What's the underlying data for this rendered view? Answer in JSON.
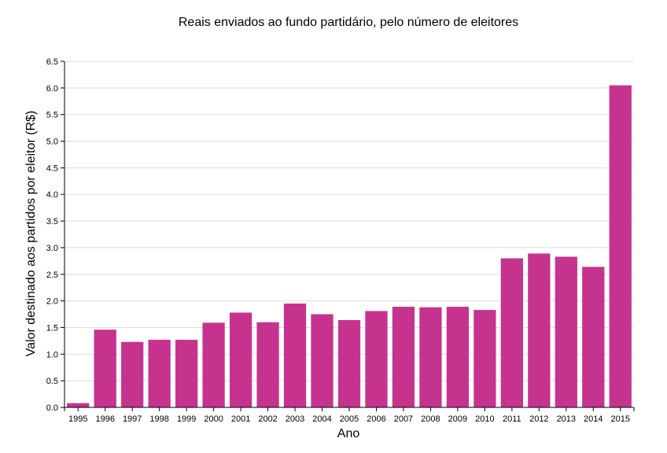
{
  "chart_data": {
    "type": "bar",
    "title": "Reais enviados ao fundo partidário, pelo número de eleitores",
    "xlabel": "Ano",
    "ylabel": "Valor destinado aos partidos por eleitor (R$)",
    "categories": [
      "1995",
      "1996",
      "1997",
      "1998",
      "1999",
      "2000",
      "2001",
      "2002",
      "2003",
      "2004",
      "2005",
      "2006",
      "2007",
      "2008",
      "2009",
      "2010",
      "2011",
      "2012",
      "2013",
      "2014",
      "2015"
    ],
    "values": [
      0.08,
      1.46,
      1.23,
      1.27,
      1.27,
      1.59,
      1.78,
      1.6,
      1.95,
      1.75,
      1.64,
      1.81,
      1.89,
      1.88,
      1.89,
      1.83,
      2.8,
      2.89,
      2.83,
      2.64,
      6.05
    ],
    "ylim": [
      0,
      6.5
    ],
    "yticks": [
      "0.0",
      "0.5",
      "1.0",
      "1.5",
      "2.0",
      "2.5",
      "3.0",
      "3.5",
      "4.0",
      "4.5",
      "5.0",
      "5.5",
      "6.0",
      "6.5"
    ],
    "grid": true,
    "bar_color": "#c6338f"
  }
}
